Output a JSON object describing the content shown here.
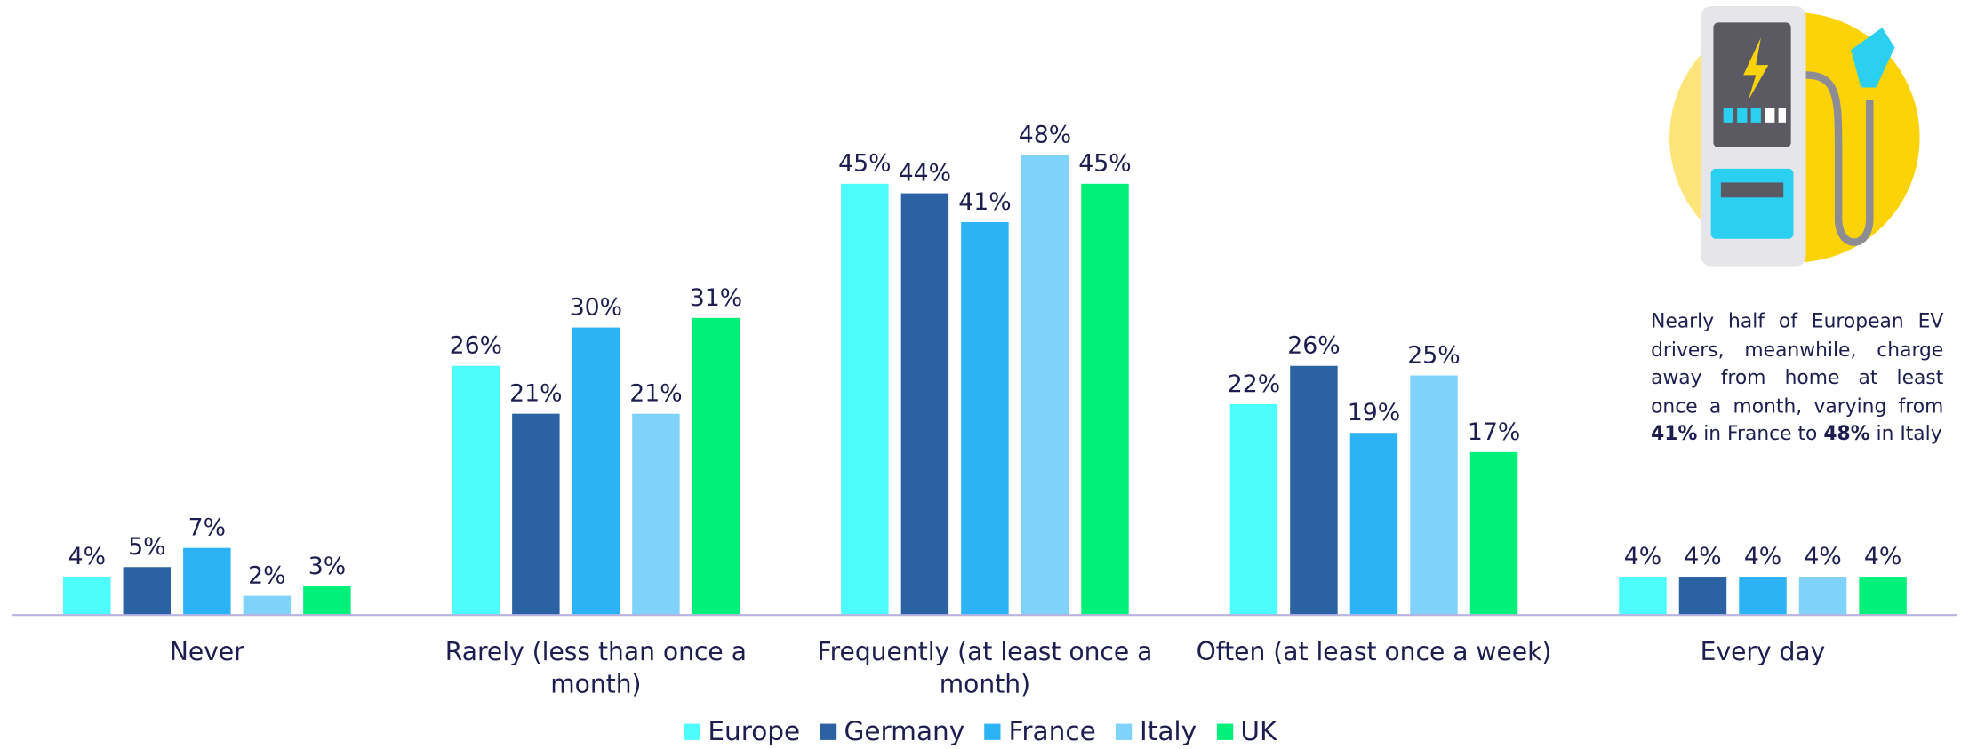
{
  "chart_data": {
    "type": "bar",
    "categories": [
      "Never",
      "Rarely (less than once a month)",
      "Frequently (at least once a month)",
      "Often (at least once a week)",
      "Every day"
    ],
    "series": [
      {
        "name": "Europe",
        "color": "#4dfcfc",
        "values": [
          4,
          26,
          45,
          22,
          4
        ],
        "value_labels": [
          "4%",
          "26%",
          "45%",
          "22%",
          "4%"
        ]
      },
      {
        "name": "Germany",
        "color": "#2a62a3",
        "values": [
          5,
          21,
          44,
          26,
          4
        ],
        "value_labels": [
          "5%",
          "21%",
          "44%",
          "26%",
          "4%"
        ]
      },
      {
        "name": "France",
        "color": "#2bb3f5",
        "values": [
          7,
          30,
          41,
          19,
          4
        ],
        "value_labels": [
          "7%",
          "30%",
          "41%",
          "19%",
          "4%"
        ]
      },
      {
        "name": "Italy",
        "color": "#7fd2fa",
        "values": [
          2,
          21,
          48,
          25,
          4
        ],
        "value_labels": [
          "2%",
          "21%",
          "48%",
          "25%",
          "4%"
        ]
      },
      {
        "name": "UK",
        "color": "#00f07a",
        "values": [
          3,
          31,
          45,
          17,
          4
        ],
        "value_labels": [
          "3%",
          "31%",
          "45%",
          "17%",
          "4%"
        ]
      }
    ],
    "legend": "bottom",
    "annotation": {
      "text1": "Nearly half of European EV drivers, meanwhile, charge away from home at least once a month, varying from",
      "bold1": "41%",
      "text2": "in France to",
      "bold2": "48%",
      "text3": "in Italy"
    }
  }
}
